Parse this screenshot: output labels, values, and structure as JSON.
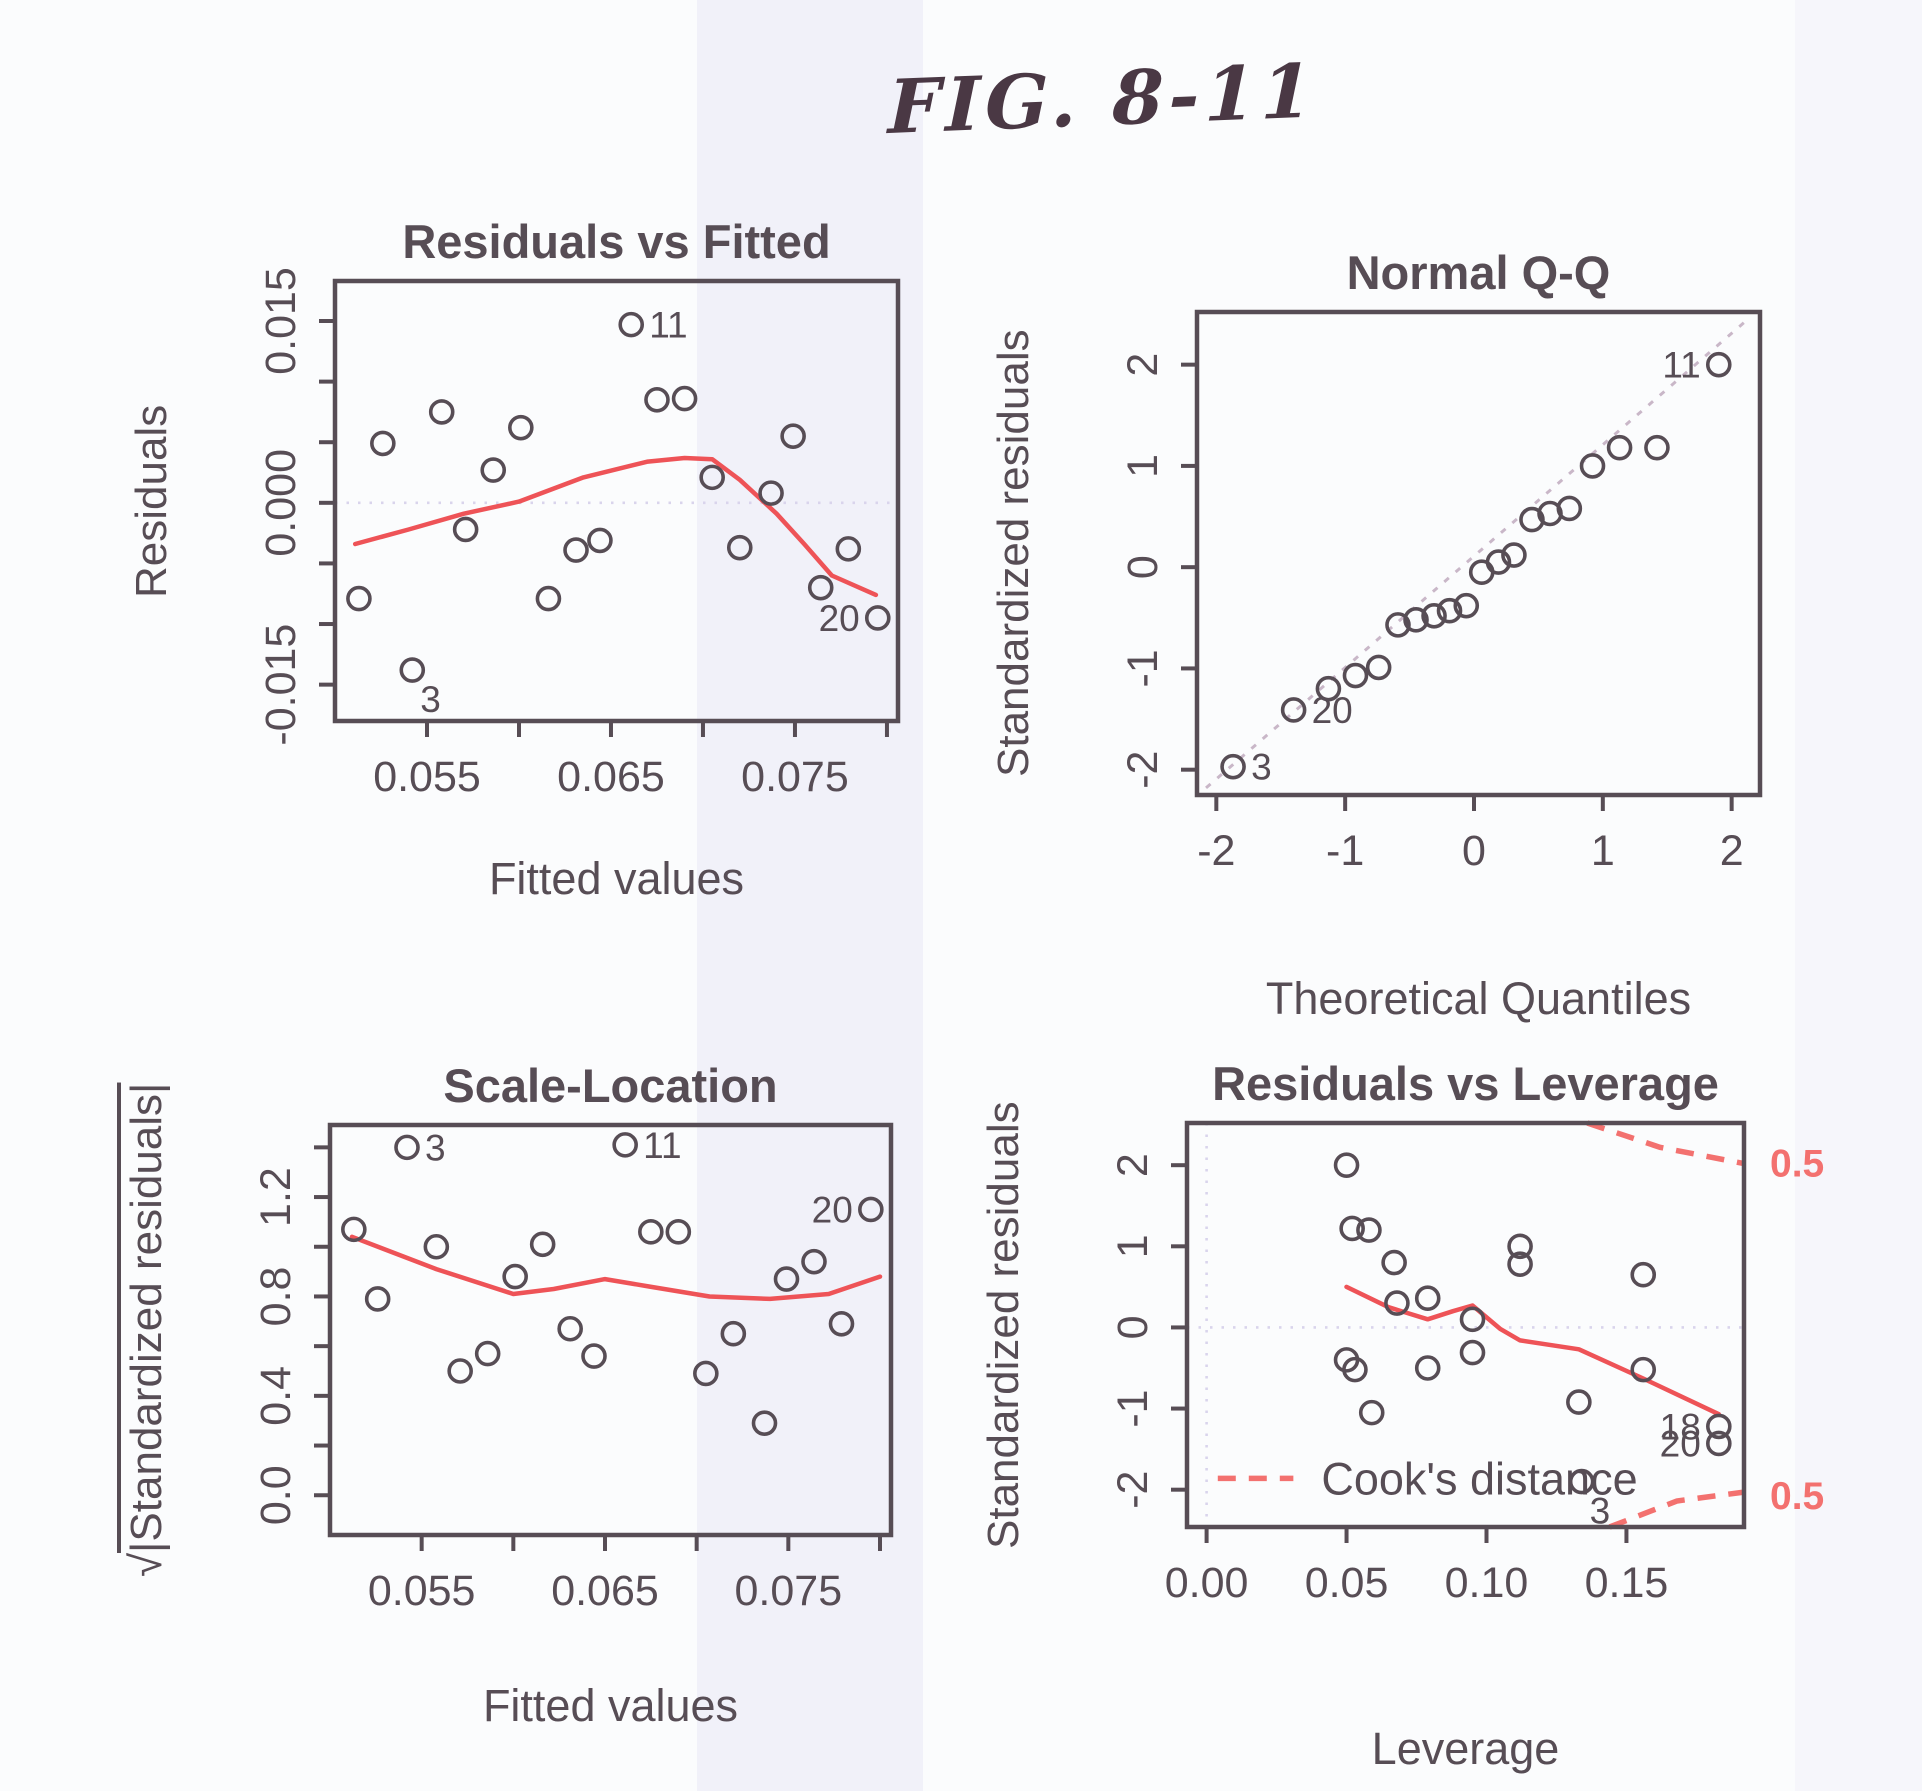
{
  "figure": {
    "caption": "FIG. 8-11"
  },
  "colors": {
    "ink": "#574d55",
    "red": "#ee5357",
    "red_light": "#f3716f",
    "ref_dotted": "#d9d4ec",
    "diag_dashed": "#c9b7c8",
    "paper": "#fbfcfd",
    "tint_band": "#e7e5f6",
    "hand_ink": "#4a3844"
  },
  "chart_data": [
    {
      "key": "residuals-vs-fitted",
      "type": "scatter",
      "title": "Residuals vs Fitted",
      "xlabel": "Fitted values",
      "ylabel": "Residuals",
      "xlim": [
        0.05,
        0.0806
      ],
      "ylim": [
        -0.018,
        0.0183
      ],
      "grid": false,
      "xticks": [
        {
          "v": 0.055,
          "label": "0.055"
        },
        {
          "v": 0.06,
          "label": ""
        },
        {
          "v": 0.065,
          "label": "0.065"
        },
        {
          "v": 0.07,
          "label": ""
        },
        {
          "v": 0.075,
          "label": "0.075"
        },
        {
          "v": 0.08,
          "label": ""
        }
      ],
      "yticks": [
        {
          "v": 0.015,
          "label": "0.015"
        },
        {
          "v": 0.01,
          "label": ""
        },
        {
          "v": 0.005,
          "label": ""
        },
        {
          "v": 0.0,
          "label": "0.000"
        },
        {
          "v": -0.005,
          "label": ""
        },
        {
          "v": -0.01,
          "label": ""
        },
        {
          "v": -0.015,
          "label": "-0.015"
        }
      ],
      "hline_y": 0,
      "points": [
        [
          0.0661,
          0.0147
        ],
        [
          0.0675,
          0.0085
        ],
        [
          0.069,
          0.0086
        ],
        [
          0.0558,
          0.0075
        ],
        [
          0.0601,
          0.0062
        ],
        [
          0.0526,
          0.0049
        ],
        [
          0.0586,
          0.0027
        ],
        [
          0.0705,
          0.0021
        ],
        [
          0.0737,
          0.0008
        ],
        [
          0.0749,
          0.0055
        ],
        [
          0.0571,
          -0.0022
        ],
        [
          0.0631,
          -0.0039
        ],
        [
          0.0644,
          -0.0031
        ],
        [
          0.072,
          -0.0037
        ],
        [
          0.0779,
          -0.0038
        ],
        [
          0.0513,
          -0.0079
        ],
        [
          0.0616,
          -0.0079
        ],
        [
          0.0764,
          -0.007
        ],
        [
          0.0795,
          -0.0095
        ],
        [
          0.0542,
          -0.0138
        ]
      ],
      "smooth": [
        [
          0.0511,
          -0.0034
        ],
        [
          0.054,
          -0.0022
        ],
        [
          0.057,
          -0.0009
        ],
        [
          0.06,
          0.0001
        ],
        [
          0.0635,
          0.0021
        ],
        [
          0.067,
          0.0034
        ],
        [
          0.069,
          0.0037
        ],
        [
          0.0705,
          0.0036
        ],
        [
          0.072,
          0.0019
        ],
        [
          0.074,
          -0.0009
        ],
        [
          0.0755,
          -0.0034
        ],
        [
          0.077,
          -0.006
        ],
        [
          0.0794,
          -0.0076
        ]
      ],
      "annotations": [
        {
          "text": "11",
          "x": 0.0661,
          "y": 0.0147,
          "side": "right"
        },
        {
          "text": "20",
          "x": 0.0795,
          "y": -0.0095,
          "side": "left"
        },
        {
          "text": "3",
          "x": 0.0542,
          "y": -0.0138,
          "side": "below-right"
        }
      ]
    },
    {
      "key": "normal-qq",
      "type": "scatter",
      "title": "Normal Q-Q",
      "xlabel": "Theoretical Quantiles",
      "ylabel": "Standardized residuals",
      "xlim": [
        -2.15,
        2.22
      ],
      "ylim": [
        -2.25,
        2.52
      ],
      "grid": false,
      "xticks": [
        {
          "v": -2,
          "label": "-2"
        },
        {
          "v": -1,
          "label": "-1"
        },
        {
          "v": 0,
          "label": "0"
        },
        {
          "v": 1,
          "label": "1"
        },
        {
          "v": 2,
          "label": "2"
        }
      ],
      "yticks": [
        {
          "v": 2,
          "label": "2"
        },
        {
          "v": 1,
          "label": "1"
        },
        {
          "v": 0,
          "label": "0"
        },
        {
          "v": -1,
          "label": "-1"
        },
        {
          "v": -2,
          "label": "-2"
        }
      ],
      "diag": [
        [
          -2.08,
          -2.18
        ],
        [
          2.1,
          2.42
        ]
      ],
      "points": [
        [
          -1.87,
          -1.97
        ],
        [
          -1.4,
          -1.41
        ],
        [
          -1.13,
          -1.2
        ],
        [
          -0.92,
          -1.07
        ],
        [
          -0.74,
          -0.99
        ],
        [
          -0.59,
          -0.57
        ],
        [
          -0.45,
          -0.52
        ],
        [
          -0.31,
          -0.48
        ],
        [
          -0.19,
          -0.43
        ],
        [
          -0.06,
          -0.38
        ],
        [
          0.06,
          -0.05
        ],
        [
          0.19,
          0.05
        ],
        [
          0.31,
          0.12
        ],
        [
          0.45,
          0.47
        ],
        [
          0.59,
          0.53
        ],
        [
          0.74,
          0.58
        ],
        [
          0.92,
          1.0
        ],
        [
          1.13,
          1.18
        ],
        [
          1.42,
          1.18
        ],
        [
          1.9,
          2.0
        ]
      ],
      "annotations": [
        {
          "text": "3",
          "x": -1.87,
          "y": -1.97,
          "side": "right"
        },
        {
          "text": "20",
          "x": -1.4,
          "y": -1.41,
          "side": "right"
        },
        {
          "text": "11",
          "x": 1.9,
          "y": 2.0,
          "side": "left"
        }
      ]
    },
    {
      "key": "scale-location",
      "type": "scatter",
      "title": "Scale-Location",
      "xlabel": "Fitted values",
      "ylabel": "√|Standardized residuals|",
      "ylabel_sqrt": "√",
      "ylabel_rest": "|Standardized residuals|",
      "xlim": [
        0.05,
        0.0806
      ],
      "ylim": [
        -0.16,
        1.49
      ],
      "grid": false,
      "xticks": [
        {
          "v": 0.055,
          "label": "0.055"
        },
        {
          "v": 0.06,
          "label": ""
        },
        {
          "v": 0.065,
          "label": "0.065"
        },
        {
          "v": 0.07,
          "label": ""
        },
        {
          "v": 0.075,
          "label": "0.075"
        },
        {
          "v": 0.08,
          "label": ""
        }
      ],
      "yticks": [
        {
          "v": 1.4,
          "label": ""
        },
        {
          "v": 1.2,
          "label": "1.2"
        },
        {
          "v": 1.0,
          "label": ""
        },
        {
          "v": 0.8,
          "label": "0.8"
        },
        {
          "v": 0.6,
          "label": ""
        },
        {
          "v": 0.4,
          "label": "0.4"
        },
        {
          "v": 0.2,
          "label": ""
        },
        {
          "v": 0.0,
          "label": "0.0"
        }
      ],
      "points": [
        [
          0.0661,
          1.41
        ],
        [
          0.0675,
          1.06
        ],
        [
          0.069,
          1.06
        ],
        [
          0.0558,
          1.0
        ],
        [
          0.0601,
          0.88
        ],
        [
          0.0526,
          0.79
        ],
        [
          0.0586,
          0.57
        ],
        [
          0.0705,
          0.49
        ],
        [
          0.0737,
          0.29
        ],
        [
          0.0749,
          0.87
        ],
        [
          0.0571,
          0.5
        ],
        [
          0.0631,
          0.67
        ],
        [
          0.0644,
          0.56
        ],
        [
          0.072,
          0.65
        ],
        [
          0.0779,
          0.69
        ],
        [
          0.0513,
          1.07
        ],
        [
          0.0616,
          1.01
        ],
        [
          0.0764,
          0.94
        ],
        [
          0.0795,
          1.15
        ],
        [
          0.0542,
          1.4
        ]
      ],
      "smooth": [
        [
          0.0512,
          1.04
        ],
        [
          0.0558,
          0.91
        ],
        [
          0.06,
          0.81
        ],
        [
          0.0622,
          0.83
        ],
        [
          0.065,
          0.87
        ],
        [
          0.0674,
          0.84
        ],
        [
          0.0707,
          0.8
        ],
        [
          0.074,
          0.79
        ],
        [
          0.0772,
          0.81
        ],
        [
          0.08,
          0.88
        ]
      ],
      "annotations": [
        {
          "text": "3",
          "x": 0.0542,
          "y": 1.4,
          "side": "right"
        },
        {
          "text": "11",
          "x": 0.0661,
          "y": 1.41,
          "side": "right"
        },
        {
          "text": "20",
          "x": 0.0795,
          "y": 1.15,
          "side": "left"
        }
      ]
    },
    {
      "key": "residuals-vs-leverage",
      "type": "scatter",
      "title": "Residuals vs Leverage",
      "xlabel": "Leverage",
      "ylabel": "Standardized residuals",
      "xlim": [
        -0.007,
        0.192
      ],
      "ylim": [
        -2.46,
        2.52
      ],
      "grid": false,
      "xticks": [
        {
          "v": 0.0,
          "label": "0.00"
        },
        {
          "v": 0.05,
          "label": "0.05"
        },
        {
          "v": 0.1,
          "label": "0.10"
        },
        {
          "v": 0.15,
          "label": "0.15"
        }
      ],
      "yticks": [
        {
          "v": 2,
          "label": "2"
        },
        {
          "v": 1,
          "label": "1"
        },
        {
          "v": 0,
          "label": "0"
        },
        {
          "v": -1,
          "label": "-1"
        },
        {
          "v": -2,
          "label": "-2"
        }
      ],
      "hline_y": 0,
      "vline_x": 0,
      "points": [
        [
          0.05,
          2.0
        ],
        [
          0.052,
          1.22
        ],
        [
          0.058,
          1.2
        ],
        [
          0.067,
          0.8
        ],
        [
          0.112,
          1.0
        ],
        [
          0.112,
          0.78
        ],
        [
          0.156,
          0.65
        ],
        [
          0.068,
          0.3
        ],
        [
          0.079,
          0.36
        ],
        [
          0.095,
          0.1
        ],
        [
          0.095,
          -0.31
        ],
        [
          0.05,
          -0.4
        ],
        [
          0.053,
          -0.52
        ],
        [
          0.079,
          -0.5
        ],
        [
          0.059,
          -1.05
        ],
        [
          0.133,
          -0.92
        ],
        [
          0.156,
          -0.52
        ],
        [
          0.183,
          -1.22
        ],
        [
          0.183,
          -1.43
        ],
        [
          0.134,
          -1.9
        ]
      ],
      "smooth": [
        [
          0.05,
          0.5
        ],
        [
          0.065,
          0.25
        ],
        [
          0.079,
          0.1
        ],
        [
          0.088,
          0.2
        ],
        [
          0.095,
          0.27
        ],
        [
          0.105,
          -0.02
        ],
        [
          0.112,
          -0.16
        ],
        [
          0.133,
          -0.27
        ],
        [
          0.156,
          -0.63
        ],
        [
          0.183,
          -1.07
        ]
      ],
      "cooks_label": "0.5",
      "cooks": [
        {
          "pts": [
            [
              0.136,
              2.52
            ],
            [
              0.162,
              2.22
            ],
            [
              0.192,
              2.02
            ]
          ],
          "label_y": 2.02
        },
        {
          "pts": [
            [
              0.144,
              -2.46
            ],
            [
              0.168,
              -2.14
            ],
            [
              0.192,
              -2.03
            ]
          ],
          "label_y": -2.08
        }
      ],
      "legend": {
        "x1": 0.004,
        "x2": 0.031,
        "y": -1.86,
        "text": "Cook's distance"
      },
      "annotations": [
        {
          "text": "18",
          "x": 0.183,
          "y": -1.22,
          "side": "left"
        },
        {
          "text": "20",
          "x": 0.183,
          "y": -1.43,
          "side": "left"
        },
        {
          "text": "3",
          "x": 0.134,
          "y": -1.9,
          "side": "below-right"
        }
      ]
    }
  ]
}
